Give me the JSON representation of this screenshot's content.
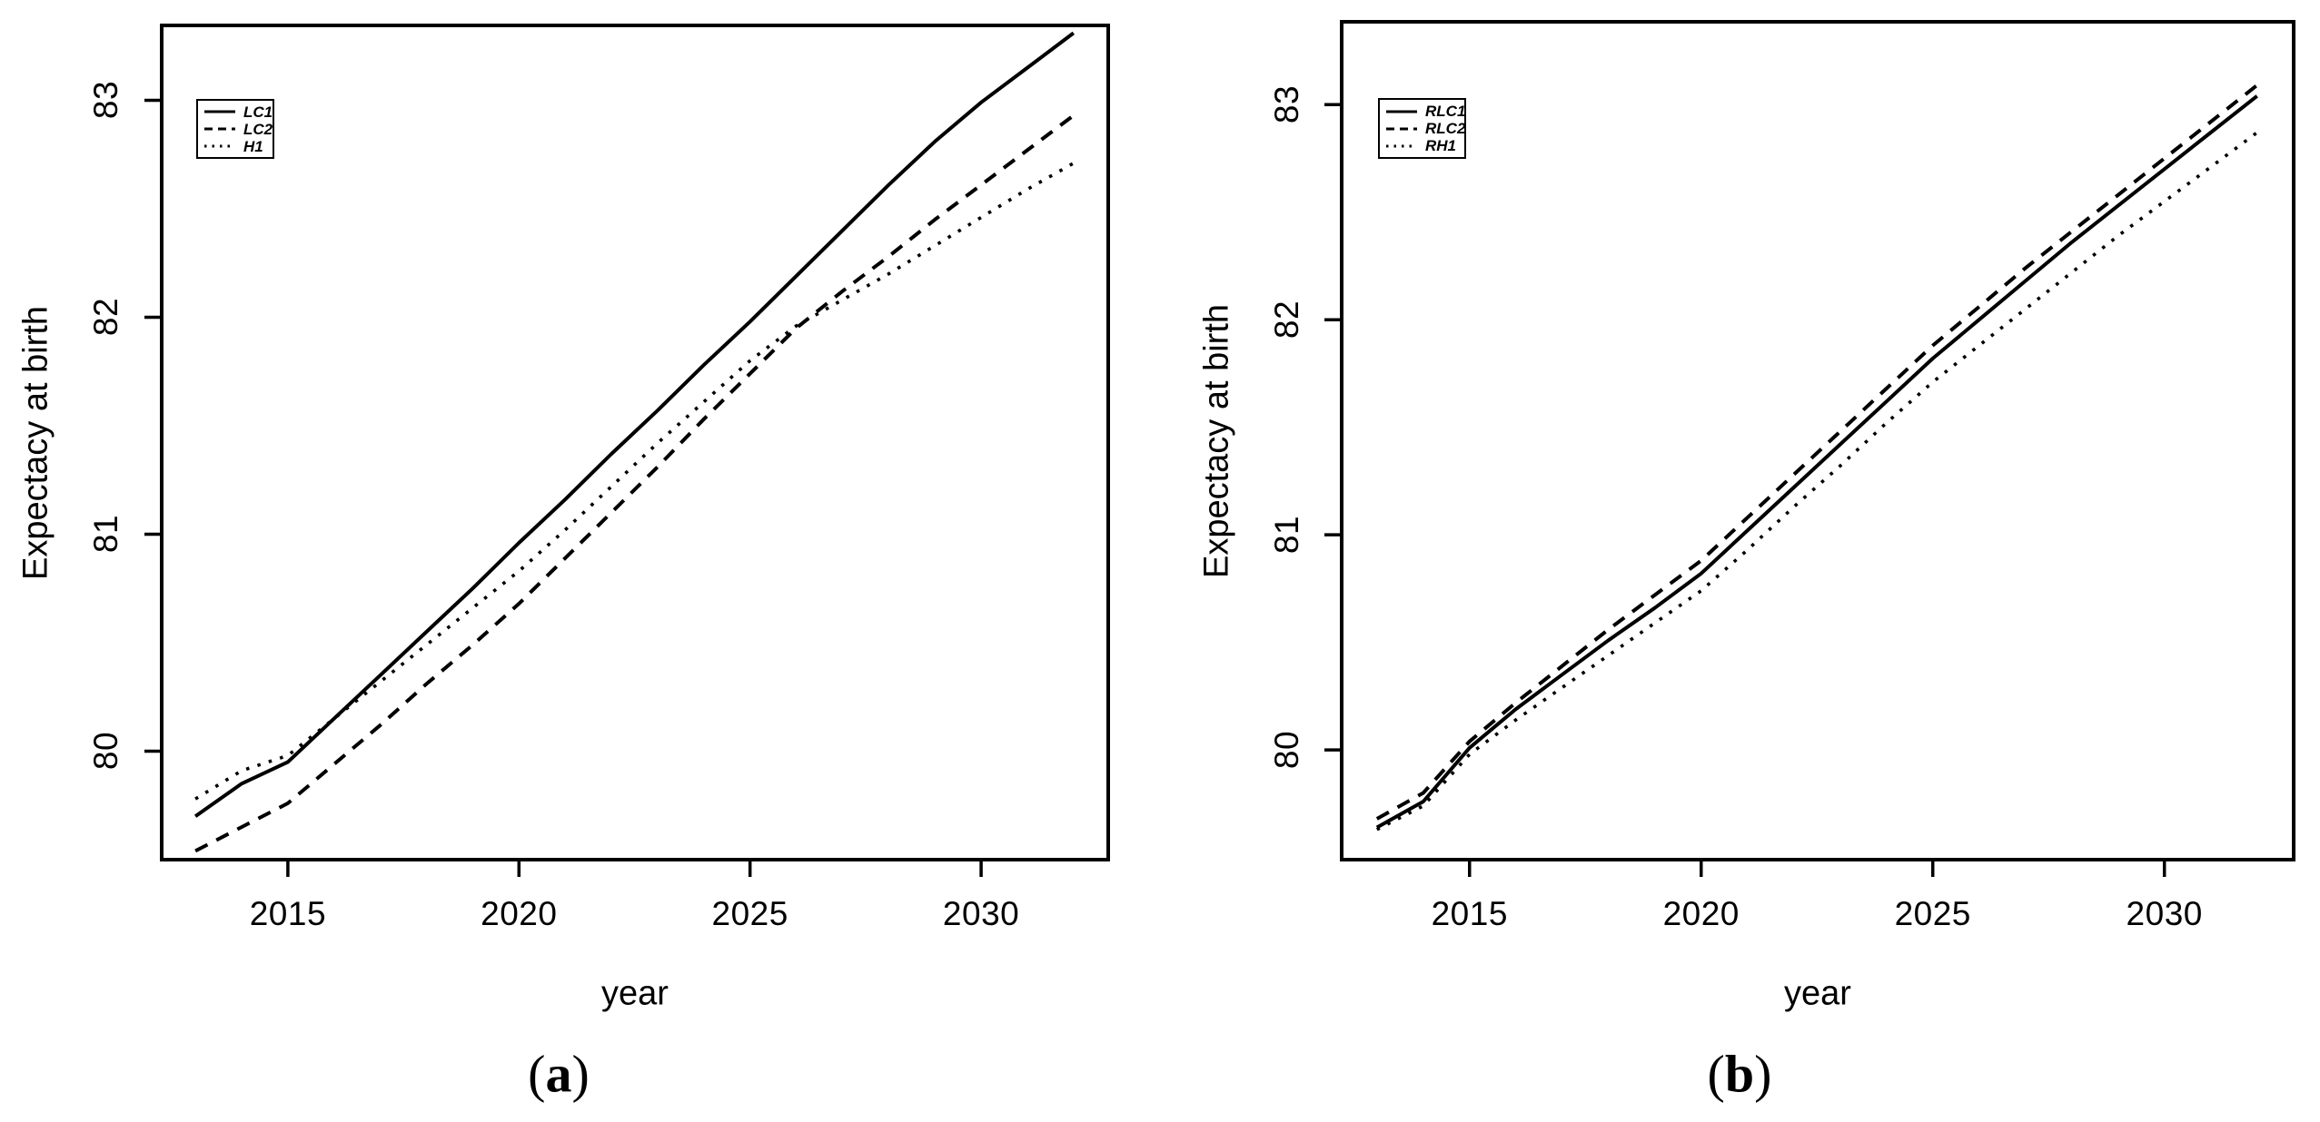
{
  "figure": {
    "background": "#ffffff",
    "ink": "#000000"
  },
  "chart_data": [
    {
      "id": "a",
      "type": "line",
      "caption": {
        "open": "(",
        "letter": "a",
        "close": ")"
      },
      "xlabel": "year",
      "ylabel": "Expectacy at birth",
      "x_ticks": [
        2015,
        2020,
        2025,
        2030
      ],
      "y_ticks": [
        80,
        81,
        82,
        83
      ],
      "xlim": [
        2012.27,
        2032.75
      ],
      "ylim": [
        79.5,
        83.345
      ],
      "grid": false,
      "legend_position": "top-left",
      "x": [
        2013,
        2014,
        2015,
        2016,
        2017,
        2018,
        2019,
        2020,
        2021,
        2022,
        2023,
        2024,
        2025,
        2026,
        2027,
        2028,
        2029,
        2030,
        2031,
        2032
      ],
      "series": [
        {
          "name": "LC1",
          "linestyle": "solid",
          "values": [
            79.7,
            79.85,
            79.95,
            80.15,
            80.35,
            80.55,
            80.75,
            80.96,
            81.16,
            81.37,
            81.57,
            81.78,
            81.98,
            82.19,
            82.4,
            82.61,
            82.81,
            82.99,
            83.15,
            83.31
          ]
        },
        {
          "name": "LC2",
          "linestyle": "dashed",
          "values": [
            79.54,
            79.65,
            79.76,
            79.94,
            80.12,
            80.31,
            80.49,
            80.68,
            80.89,
            81.1,
            81.31,
            81.53,
            81.74,
            81.95,
            82.12,
            82.28,
            82.45,
            82.61,
            82.77,
            82.93
          ]
        },
        {
          "name": "H1",
          "linestyle": "dotted",
          "values": [
            79.78,
            79.91,
            79.98,
            80.15,
            80.32,
            80.49,
            80.66,
            80.83,
            81.02,
            81.22,
            81.42,
            81.61,
            81.8,
            81.96,
            82.08,
            82.2,
            82.33,
            82.46,
            82.59,
            82.71
          ]
        }
      ]
    },
    {
      "id": "b",
      "type": "line",
      "caption": {
        "open": "(",
        "letter": "b",
        "close": ")"
      },
      "xlabel": "year",
      "ylabel": "Expectacy at birth",
      "x_ticks": [
        2015,
        2020,
        2025,
        2030
      ],
      "y_ticks": [
        80,
        81,
        82,
        83
      ],
      "xlim": [
        2012.24,
        2032.79
      ],
      "ylim": [
        79.49,
        83.385
      ],
      "grid": false,
      "legend_position": "top-left",
      "x": [
        2013,
        2014,
        2015,
        2016,
        2017,
        2018,
        2019,
        2020,
        2021,
        2022,
        2023,
        2024,
        2025,
        2026,
        2027,
        2028,
        2029,
        2030,
        2031,
        2032
      ],
      "series": [
        {
          "name": "RLC1",
          "linestyle": "solid",
          "values": [
            79.64,
            79.76,
            80.01,
            80.19,
            80.35,
            80.51,
            80.66,
            80.82,
            81.02,
            81.22,
            81.42,
            81.62,
            81.82,
            82.0,
            82.18,
            82.36,
            82.53,
            82.7,
            82.87,
            83.04
          ]
        },
        {
          "name": "RLC2",
          "linestyle": "dashed",
          "values": [
            79.68,
            79.8,
            80.04,
            80.22,
            80.39,
            80.56,
            80.72,
            80.88,
            81.08,
            81.28,
            81.48,
            81.68,
            81.88,
            82.06,
            82.24,
            82.41,
            82.58,
            82.75,
            82.92,
            83.09
          ]
        },
        {
          "name": "RH1",
          "linestyle": "dotted",
          "values": [
            79.63,
            79.74,
            79.98,
            80.14,
            80.29,
            80.44,
            80.59,
            80.74,
            80.93,
            81.13,
            81.32,
            81.52,
            81.71,
            81.88,
            82.05,
            82.22,
            82.39,
            82.55,
            82.71,
            82.87
          ]
        }
      ]
    }
  ]
}
